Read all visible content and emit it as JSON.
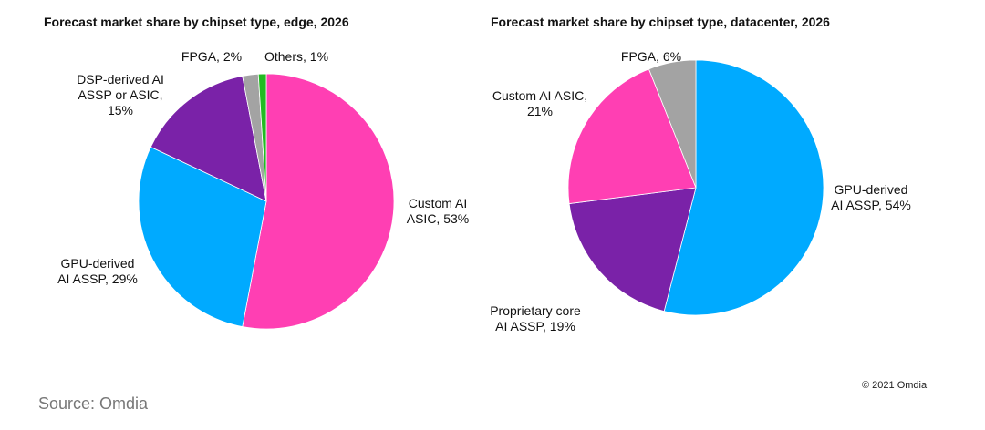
{
  "chart_data": [
    {
      "type": "pie",
      "title": "Forecast market share by chipset type, edge, 2026",
      "start_angle_deg": 0,
      "direction": "clockwise",
      "slices": [
        {
          "name": "Custom AI ASIC",
          "value": 53,
          "color": "#ff3fb3",
          "label_lines": [
            "Custom AI",
            "ASIC, 53%"
          ]
        },
        {
          "name": "GPU-derived AI ASSP",
          "value": 29,
          "color": "#00aaff",
          "label_lines": [
            "GPU-derived",
            "AI ASSP, 29%"
          ]
        },
        {
          "name": "DSP-derived AI ASSP or ASIC",
          "value": 15,
          "color": "#7a22a8",
          "label_lines": [
            "DSP-derived AI",
            "ASSP or ASIC,",
            "15%"
          ]
        },
        {
          "name": "FPGA",
          "value": 2,
          "color": "#a3a3a3",
          "label_lines": [
            "FPGA, 2%"
          ]
        },
        {
          "name": "Others",
          "value": 1,
          "color": "#22bb22",
          "label_lines": [
            "Others, 1%"
          ]
        }
      ]
    },
    {
      "type": "pie",
      "title": "Forecast market share by chipset type, datacenter, 2026",
      "start_angle_deg": 0,
      "direction": "clockwise",
      "slices": [
        {
          "name": "GPU-derived AI ASSP",
          "value": 54,
          "color": "#00aaff",
          "label_lines": [
            "GPU-derived",
            "AI ASSP, 54%"
          ]
        },
        {
          "name": "Proprietary core AI ASSP",
          "value": 19,
          "color": "#7a22a8",
          "label_lines": [
            "Proprietary core",
            "AI ASSP, 19%"
          ]
        },
        {
          "name": "Custom AI ASIC",
          "value": 21,
          "color": "#ff3fb3",
          "label_lines": [
            "Custom AI ASIC,",
            "21%"
          ]
        },
        {
          "name": "FPGA",
          "value": 6,
          "color": "#a3a3a3",
          "label_lines": [
            "FPGA, 6%"
          ]
        }
      ]
    }
  ],
  "source_text": "Source: Omdia",
  "copyright_text": "© 2021 Omdia"
}
